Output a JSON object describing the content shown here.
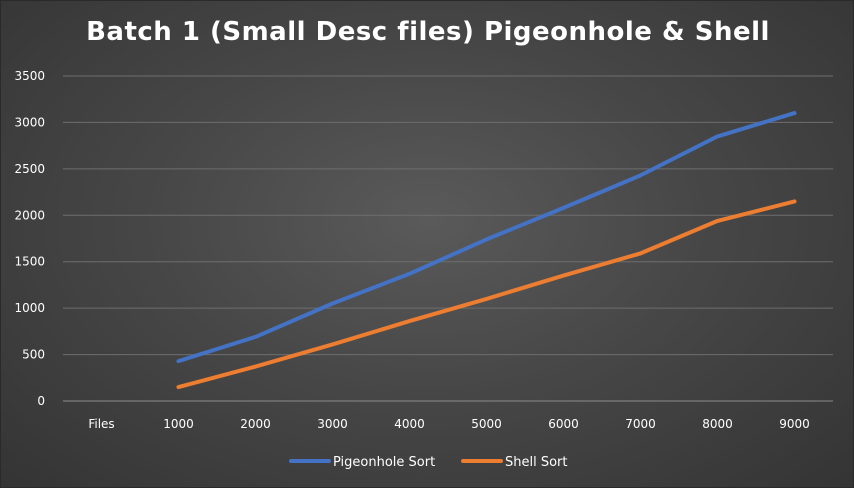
{
  "chart_data": {
    "type": "line",
    "title": "Batch 1 (Small Desc files) Pigeonhole & Shell",
    "categories": [
      "Files",
      "1000",
      "2000",
      "3000",
      "4000",
      "5000",
      "6000",
      "7000",
      "8000",
      "9000"
    ],
    "series": [
      {
        "name": "Pigeonhole Sort",
        "color": "#4472c4",
        "values": [
          null,
          430,
          690,
          1050,
          1370,
          1740,
          2080,
          2430,
          2850,
          3100
        ]
      },
      {
        "name": "Shell Sort",
        "color": "#ed7d31",
        "values": [
          null,
          150,
          370,
          610,
          860,
          1100,
          1350,
          1590,
          1940,
          2150
        ]
      }
    ],
    "ylim": [
      0,
      3500
    ],
    "yticks": [
      "0",
      "500",
      "1000",
      "1500",
      "2000",
      "2500",
      "3000",
      "3500"
    ],
    "grid": true,
    "legend": "bottom-center"
  }
}
